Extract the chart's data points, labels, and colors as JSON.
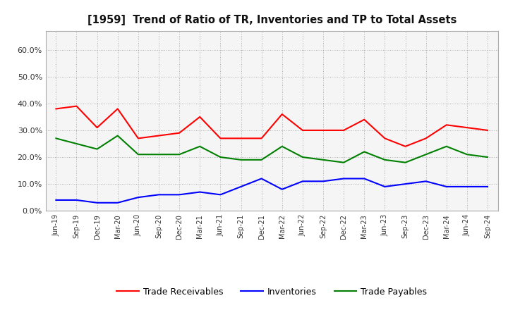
{
  "title": "[1959]  Trend of Ratio of TR, Inventories and TP to Total Assets",
  "x_labels": [
    "Jun-19",
    "Sep-19",
    "Dec-19",
    "Mar-20",
    "Jun-20",
    "Sep-20",
    "Dec-20",
    "Mar-21",
    "Jun-21",
    "Sep-21",
    "Dec-21",
    "Mar-22",
    "Jun-22",
    "Sep-22",
    "Dec-22",
    "Mar-23",
    "Jun-23",
    "Sep-23",
    "Dec-23",
    "Mar-24",
    "Jun-24",
    "Sep-24"
  ],
  "trade_receivables": [
    0.38,
    0.39,
    0.31,
    0.38,
    0.27,
    0.28,
    0.29,
    0.35,
    0.27,
    0.27,
    0.27,
    0.36,
    0.3,
    0.3,
    0.3,
    0.34,
    0.27,
    0.24,
    0.27,
    0.32,
    0.31,
    0.3
  ],
  "inventories": [
    0.04,
    0.04,
    0.03,
    0.03,
    0.05,
    0.06,
    0.06,
    0.07,
    0.06,
    0.09,
    0.12,
    0.08,
    0.11,
    0.11,
    0.12,
    0.12,
    0.09,
    0.1,
    0.11,
    0.09,
    0.09,
    0.09
  ],
  "trade_payables": [
    0.27,
    0.25,
    0.23,
    0.28,
    0.21,
    0.21,
    0.21,
    0.24,
    0.2,
    0.19,
    0.19,
    0.24,
    0.2,
    0.19,
    0.18,
    0.22,
    0.19,
    0.18,
    0.21,
    0.24,
    0.21,
    0.2
  ],
  "ylim": [
    0,
    0.67
  ],
  "yticks": [
    0.0,
    0.1,
    0.2,
    0.3,
    0.4,
    0.5,
    0.6
  ],
  "color_tr": "#ff0000",
  "color_inv": "#0000ff",
  "color_tp": "#008000",
  "background_color": "#ffffff",
  "plot_bg_color": "#f5f5f5",
  "grid_color": "#999999",
  "legend_labels": [
    "Trade Receivables",
    "Inventories",
    "Trade Payables"
  ]
}
